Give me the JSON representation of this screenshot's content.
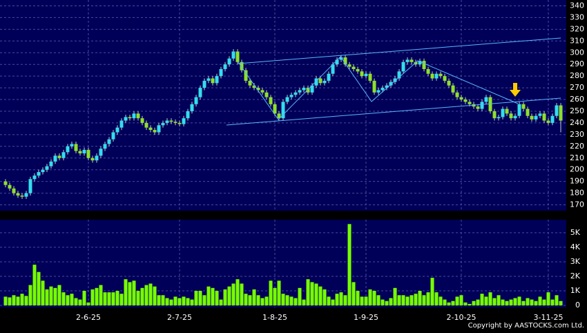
{
  "chart_data": {
    "type": "candlestick",
    "footer": "Copyright by AASTOCKS.com Ltd.",
    "categories": [
      null,
      null,
      null,
      null,
      null,
      null,
      null,
      null,
      null,
      null,
      null,
      null,
      null,
      null,
      null,
      null,
      null,
      null,
      null,
      null,
      "2-6-25",
      null,
      null,
      null,
      null,
      null,
      null,
      null,
      null,
      null,
      null,
      null,
      null,
      null,
      null,
      null,
      null,
      null,
      null,
      null,
      null,
      null,
      "2-7-25",
      null,
      null,
      null,
      null,
      null,
      null,
      null,
      null,
      null,
      null,
      null,
      null,
      null,
      null,
      null,
      null,
      null,
      null,
      null,
      null,
      null,
      null,
      "1-8-25",
      null,
      null,
      null,
      null,
      null,
      null,
      null,
      null,
      null,
      null,
      null,
      null,
      null,
      null,
      null,
      null,
      null,
      null,
      null,
      null,
      null,
      "1-9-25",
      null,
      null,
      null,
      null,
      null,
      null,
      null,
      null,
      null,
      null,
      null,
      null,
      null,
      null,
      null,
      null,
      null,
      null,
      null,
      null,
      null,
      null,
      "2-10-25",
      null,
      null,
      null,
      null,
      null,
      null,
      null,
      null,
      null,
      null,
      null,
      null,
      null,
      null,
      null,
      null,
      null,
      null,
      null,
      null,
      "3-11-25",
      null,
      null,
      null
    ],
    "open": [
      190,
      187,
      184,
      180,
      178,
      177,
      180,
      192,
      195,
      198,
      200,
      203,
      207,
      212,
      210,
      215,
      220,
      222,
      216,
      214,
      217,
      210,
      208,
      212,
      218,
      222,
      226,
      232,
      236,
      242,
      245,
      244,
      248,
      244,
      240,
      236,
      234,
      232,
      238,
      240,
      242,
      241,
      240,
      239,
      244,
      250,
      256,
      262,
      270,
      276,
      278,
      274,
      280,
      286,
      290,
      295,
      301,
      292,
      285,
      276,
      272,
      270,
      268,
      266,
      262,
      256,
      248,
      244,
      258,
      262,
      264,
      266,
      268,
      270,
      266,
      272,
      278,
      274,
      276,
      282,
      290,
      294,
      296,
      290,
      288,
      286,
      284,
      280,
      282,
      276,
      266,
      268,
      270,
      272,
      275,
      278,
      284,
      292,
      294,
      292,
      290,
      293,
      286,
      282,
      278,
      282,
      280,
      276,
      272,
      266,
      262,
      260,
      258,
      256,
      254,
      252,
      258,
      262,
      250,
      244,
      245,
      252,
      248,
      244,
      246,
      256,
      252,
      246,
      243,
      246,
      248,
      242,
      240,
      246,
      255
    ],
    "high": [
      192,
      189,
      186,
      182,
      180,
      182,
      194,
      197,
      200,
      202,
      205,
      209,
      214,
      214,
      217,
      222,
      224,
      224,
      218,
      219,
      219,
      212,
      214,
      220,
      224,
      228,
      234,
      238,
      244,
      247,
      247,
      250,
      250,
      246,
      242,
      238,
      236,
      240,
      242,
      244,
      244,
      243,
      242,
      246,
      252,
      258,
      264,
      272,
      278,
      280,
      280,
      282,
      288,
      292,
      297,
      303,
      303,
      294,
      287,
      278,
      274,
      272,
      270,
      268,
      264,
      258,
      250,
      260,
      264,
      266,
      268,
      270,
      272,
      272,
      274,
      280,
      280,
      278,
      284,
      292,
      296,
      298,
      298,
      292,
      290,
      288,
      286,
      284,
      284,
      278,
      270,
      272,
      274,
      277,
      280,
      286,
      294,
      296,
      296,
      294,
      295,
      295,
      288,
      284,
      284,
      284,
      282,
      278,
      274,
      268,
      264,
      262,
      260,
      258,
      256,
      260,
      264,
      264,
      252,
      247,
      254,
      254,
      250,
      248,
      258,
      258,
      254,
      248,
      248,
      250,
      250,
      244,
      248,
      257,
      257
    ],
    "low": [
      185,
      182,
      178,
      176,
      175,
      175,
      178,
      190,
      193,
      196,
      198,
      201,
      205,
      208,
      208,
      213,
      218,
      214,
      212,
      212,
      208,
      206,
      206,
      210,
      216,
      220,
      224,
      230,
      234,
      240,
      242,
      242,
      242,
      238,
      234,
      232,
      230,
      230,
      236,
      238,
      239,
      238,
      237,
      237,
      242,
      248,
      254,
      260,
      268,
      274,
      272,
      272,
      278,
      284,
      288,
      293,
      290,
      283,
      274,
      270,
      268,
      266,
      264,
      260,
      254,
      246,
      242,
      242,
      256,
      260,
      262,
      264,
      266,
      264,
      264,
      270,
      272,
      272,
      274,
      280,
      288,
      292,
      288,
      286,
      284,
      282,
      278,
      278,
      274,
      264,
      264,
      266,
      268,
      270,
      273,
      276,
      282,
      290,
      290,
      288,
      288,
      284,
      280,
      276,
      276,
      278,
      274,
      270,
      264,
      260,
      258,
      256,
      254,
      252,
      250,
      250,
      256,
      248,
      242,
      242,
      243,
      246,
      242,
      242,
      244,
      250,
      244,
      241,
      241,
      244,
      240,
      238,
      238,
      244,
      232
    ],
    "close": [
      187,
      184,
      180,
      178,
      177,
      180,
      192,
      195,
      198,
      200,
      203,
      207,
      212,
      210,
      215,
      220,
      222,
      216,
      214,
      217,
      210,
      208,
      212,
      218,
      222,
      226,
      232,
      236,
      242,
      245,
      244,
      248,
      244,
      240,
      236,
      234,
      232,
      238,
      240,
      242,
      241,
      240,
      239,
      244,
      250,
      256,
      262,
      270,
      276,
      278,
      274,
      280,
      286,
      290,
      295,
      301,
      292,
      285,
      276,
      272,
      270,
      268,
      266,
      262,
      256,
      248,
      244,
      258,
      262,
      264,
      266,
      268,
      270,
      266,
      272,
      278,
      274,
      276,
      282,
      290,
      294,
      296,
      290,
      288,
      286,
      284,
      280,
      282,
      276,
      266,
      268,
      270,
      272,
      275,
      278,
      284,
      292,
      294,
      292,
      290,
      293,
      286,
      282,
      278,
      282,
      280,
      276,
      272,
      266,
      262,
      260,
      258,
      256,
      254,
      252,
      258,
      262,
      250,
      244,
      245,
      252,
      248,
      244,
      246,
      256,
      252,
      246,
      243,
      246,
      248,
      242,
      240,
      246,
      255,
      242
    ],
    "volume": [
      600,
      550,
      700,
      600,
      800,
      650,
      1400,
      2800,
      2300,
      1700,
      1100,
      1300,
      1200,
      1400,
      900,
      700,
      800,
      500,
      400,
      1000,
      200,
      1100,
      1200,
      1400,
      900,
      900,
      900,
      1000,
      800,
      1800,
      1600,
      1700,
      1000,
      1200,
      1400,
      1500,
      1300,
      700,
      700,
      500,
      400,
      600,
      500,
      600,
      500,
      400,
      1000,
      1000,
      700,
      1300,
      1200,
      1000,
      400,
      1100,
      1300,
      1500,
      1800,
      1500,
      800,
      700,
      1100,
      700,
      500,
      600,
      1700,
      1200,
      1700,
      800,
      700,
      600,
      500,
      1200,
      400,
      1800,
      1600,
      1500,
      1300,
      1100,
      600,
      400,
      800,
      900,
      700,
      5600,
      1600,
      1000,
      600,
      600,
      1100,
      1000,
      700,
      400,
      300,
      500,
      1200,
      700,
      700,
      600,
      700,
      800,
      1000,
      700,
      900,
      1900,
      900,
      600,
      400,
      200,
      300,
      600,
      700,
      200,
      100,
      300,
      400,
      800,
      600,
      900,
      500,
      700,
      400,
      300,
      400,
      500,
      600,
      300,
      500,
      400,
      300,
      600,
      400,
      900,
      400,
      700,
      300
    ],
    "up_color": "#33ddee",
    "down_color": "#8ee02a",
    "volume_color": "#77ff00",
    "ylim": [
      165,
      345
    ],
    "yticks": [
      170,
      180,
      190,
      200,
      210,
      220,
      230,
      240,
      250,
      260,
      270,
      280,
      290,
      300,
      310,
      320,
      330,
      340
    ],
    "volume_ylim": [
      0,
      5900
    ],
    "volume_ticks": [
      0,
      {
        "value": 1000,
        "label": "1K"
      },
      {
        "value": 2000,
        "label": "2K"
      },
      {
        "value": 3000,
        "label": "3K"
      },
      {
        "value": 4000,
        "label": "4K"
      },
      {
        "value": 5000,
        "label": "5K"
      }
    ],
    "grid": true
  }
}
